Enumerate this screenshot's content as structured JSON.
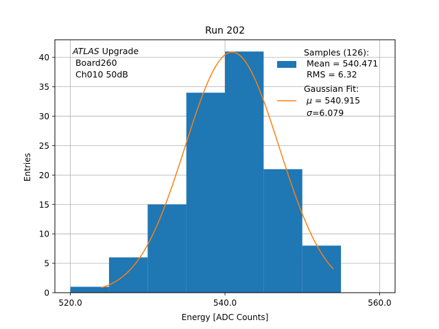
{
  "chart_data": {
    "type": "bar",
    "title": "Run 202",
    "xlabel": "Energy [ADC Counts]",
    "ylabel": "Entries",
    "xlim": [
      518,
      562
    ],
    "ylim": [
      0,
      43
    ],
    "x_ticks": [
      520,
      540,
      560
    ],
    "x_tick_labels": [
      "520.0",
      "540.0",
      "560.0"
    ],
    "y_ticks": [
      0,
      5,
      10,
      15,
      20,
      25,
      30,
      35,
      40
    ],
    "y_tick_labels": [
      "0",
      "5",
      "10",
      "15",
      "20",
      "25",
      "30",
      "35",
      "40"
    ],
    "grid": true,
    "legend_position": "top-right",
    "histogram": {
      "bin_edges": [
        520,
        525,
        530,
        535,
        540,
        545,
        550,
        555
      ],
      "counts": [
        1,
        6,
        15,
        34,
        41,
        21,
        8
      ],
      "color": "#1f77b4"
    },
    "fit": {
      "type": "gaussian",
      "mu": 540.915,
      "sigma": 6.079,
      "amplitude": 40.9,
      "x_range": [
        524,
        554
      ],
      "color": "#ff7f0e"
    },
    "annotation": {
      "atlas": "ATLAS",
      "upgrade": " Upgrade",
      "line2": " Board260",
      "line3": " Ch010 50dB"
    },
    "legend": {
      "samples_title": "Samples (126):",
      "samples_mean": " Mean = 540.471",
      "samples_rms": " RMS = 6.32",
      "fit_title": "Gaussian Fit:",
      "fit_mu_symbol": "μ",
      "fit_mu_value": " = 540.915",
      "fit_sigma_symbol": "σ",
      "fit_sigma_value": "=6.079"
    }
  }
}
